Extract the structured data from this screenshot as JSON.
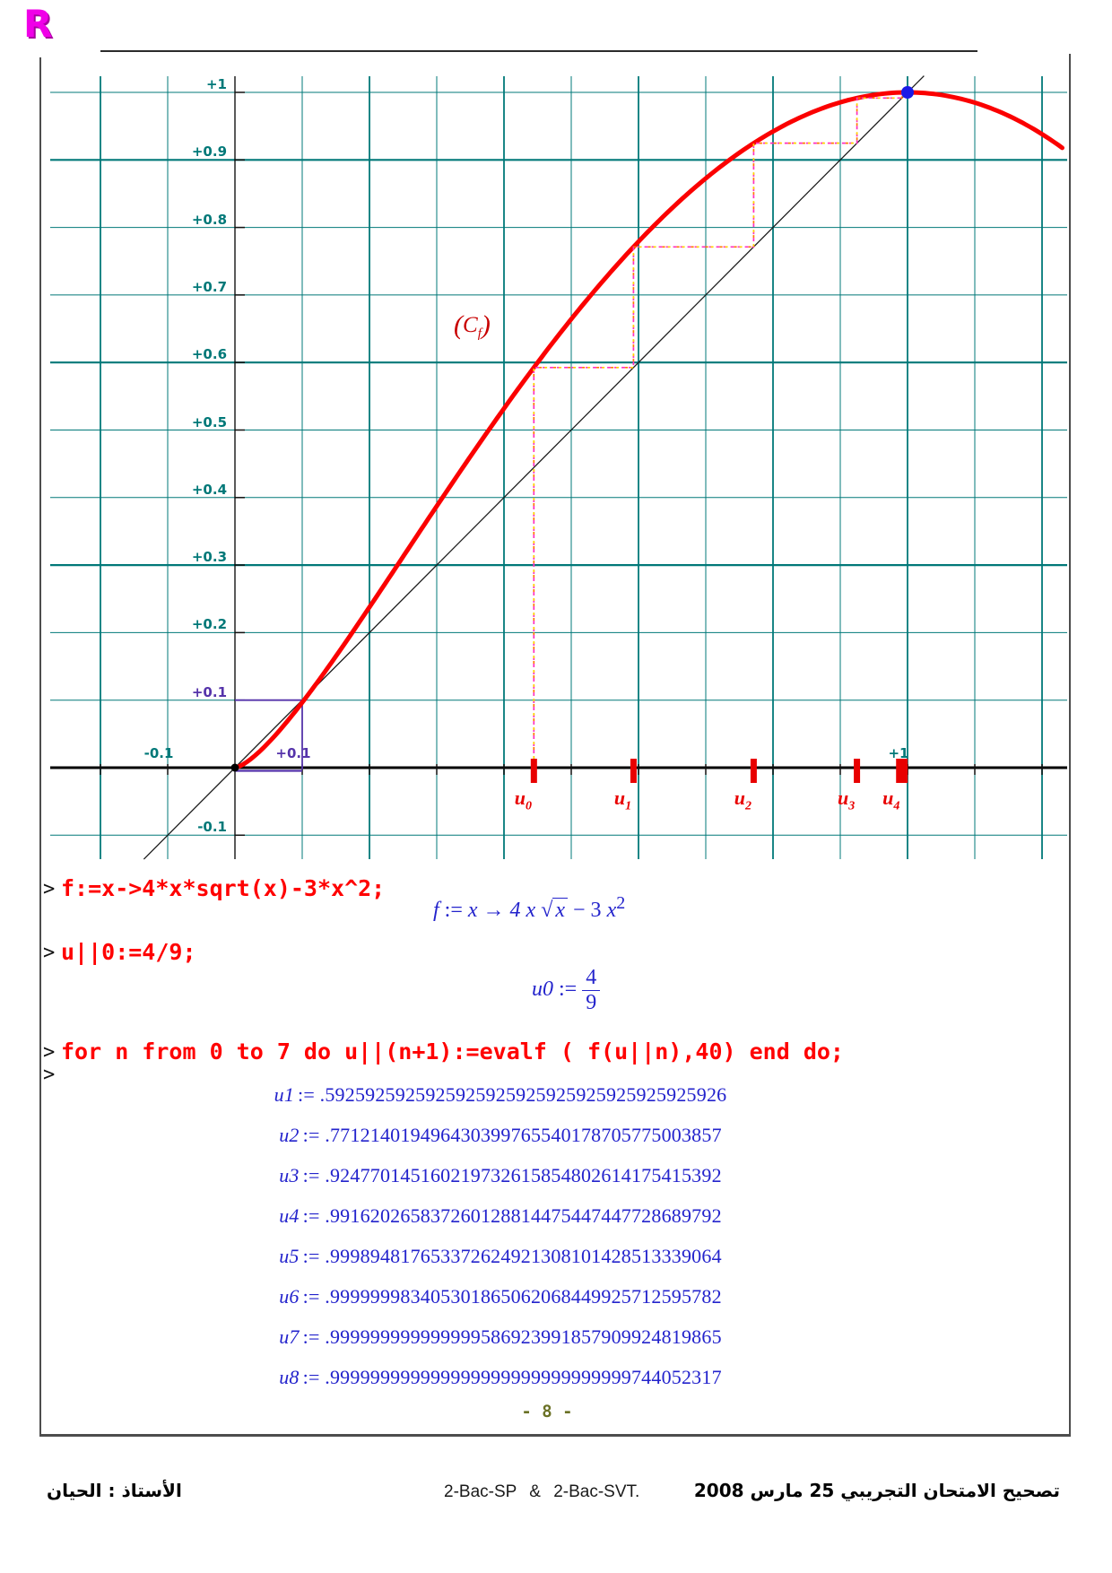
{
  "logo": {
    "text": "R"
  },
  "chart_data": {
    "type": "line",
    "title": "",
    "function_label": "(Cf)",
    "function": "f(x) = 4*x*sqrt(x) - 3*x^2",
    "diagonal_line": "y = x",
    "xlim": [
      -0.275,
      1.237
    ],
    "ylim": [
      -0.135,
      1.025
    ],
    "grid": true,
    "colors": {
      "grid": "#007878",
      "curve": "#fb0000",
      "axis": "#000000",
      "cobweb_magenta": "#ff30c0",
      "cobweb_yellow": "#ffd400",
      "cobweb_orange": "#ff7a00",
      "unit_purple": "#5533aa",
      "teal_label": "#007878",
      "fixed_point_blue": "#1a1ae6",
      "sequence_red": "#e80000"
    },
    "y_ticks": [
      {
        "v": 1.0,
        "label": "+1",
        "color": "teal"
      },
      {
        "v": 0.9,
        "label": "+0.9",
        "color": "teal"
      },
      {
        "v": 0.8,
        "label": "+0.8",
        "color": "teal"
      },
      {
        "v": 0.7,
        "label": "+0.7",
        "color": "teal"
      },
      {
        "v": 0.6,
        "label": "+0.6",
        "color": "teal"
      },
      {
        "v": 0.5,
        "label": "+0.5",
        "color": "teal"
      },
      {
        "v": 0.4,
        "label": "+0.4",
        "color": "teal"
      },
      {
        "v": 0.3,
        "label": "+0.3",
        "color": "teal"
      },
      {
        "v": 0.2,
        "label": "+0.2",
        "color": "teal"
      },
      {
        "v": 0.1,
        "label": "+0.1",
        "color": "purple"
      },
      {
        "v": -0.1,
        "label": "-0.1",
        "color": "teal"
      }
    ],
    "x_ticks": [
      {
        "v": -0.1,
        "label": "-0.1",
        "color": "teal"
      },
      {
        "v": 0.1,
        "label": "+0.1",
        "color": "purple"
      },
      {
        "v": 1.0,
        "label": "+1",
        "color": "teal"
      }
    ],
    "fixed_point": {
      "x": 1,
      "y": 1
    },
    "cobweb_x": [
      0.4444444444,
      0.5925925926,
      0.7712140195,
      0.9247701452,
      0.9916202658,
      0.9998948177
    ],
    "sequence_points": [
      {
        "label": "u",
        "sub": "0",
        "x": 0.4444444444
      },
      {
        "label": "u",
        "sub": "1",
        "x": 0.5925925926
      },
      {
        "label": "u",
        "sub": "2",
        "x": 0.7712140195
      },
      {
        "label": "u",
        "sub": "3",
        "x": 0.9247701452
      },
      {
        "label": "u",
        "sub": "4",
        "x": 0.9916202658
      }
    ]
  },
  "curve_label": {
    "open": "(",
    "letter": "C",
    "sub": "f",
    "close": ")"
  },
  "maple": {
    "prompt": ">",
    "line1_code": "f:=x->4*x*sqrt(x)-3*x^2;",
    "out1": {
      "lhs": "f",
      "assign": " := ",
      "x1": "x",
      "arrow": " → ",
      "t1": "4 x ",
      "sqrt": "√",
      "rad": "x",
      "minus": " − 3 ",
      "x2": "x",
      "sup": "2"
    },
    "line2_code": "u||0:=4/9;",
    "out2": {
      "lhs": "u0",
      "assign": " := ",
      "num": "4",
      "den": "9"
    },
    "line3_code": "for n from 0 to 7 do u||(n+1):=evalf ( f(u||n),40) end do;",
    "prompt2": ">",
    "results": [
      {
        "name": "u1",
        "assign": ":= ",
        "value": ".5925925925925925925925925925925925925926"
      },
      {
        "name": "u2",
        "assign": ":= ",
        "value": ".771214019496430399765540178705775003857"
      },
      {
        "name": "u3",
        "assign": ":= ",
        "value": ".924770145160219732615854802614175415392"
      },
      {
        "name": "u4",
        "assign": ":= ",
        "value": ".991620265837260128814475447447728689792"
      },
      {
        "name": "u5",
        "assign": ":= ",
        "value": ".999894817653372624921308101428513339064"
      },
      {
        "name": "u6",
        "assign": ":= ",
        "value": ".999999983405301865062068449925712595782"
      },
      {
        "name": "u7",
        "assign": ":= ",
        "value": ".999999999999999586923991857909924819865"
      },
      {
        "name": "u8",
        "assign": ":= ",
        "value": ".999999999999999999999999999999744052317"
      }
    ]
  },
  "page_number": "- 8 -",
  "footer": {
    "left": "الأستاذ : الحيان",
    "center": "2-Bac-SP  &  2-Bac-SVT.",
    "right": "تصحيح الامتحان التجريبي 25 مارس 2008"
  }
}
